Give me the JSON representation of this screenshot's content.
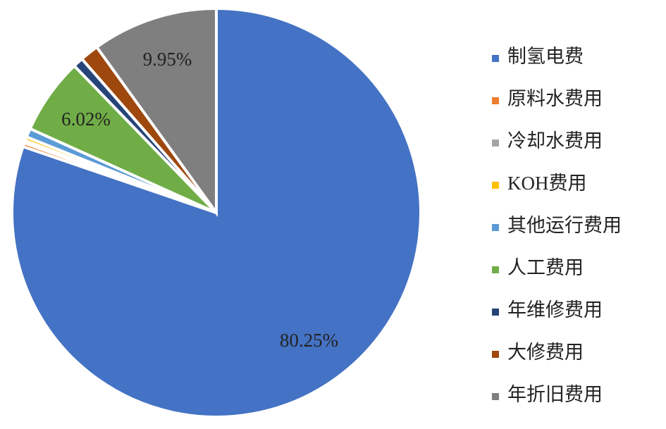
{
  "chart_data": {
    "type": "pie",
    "categories": [
      "制氢电费",
      "原料水费用",
      "冷却水费用",
      "KOH费用",
      "其他运行费用",
      "人工费用",
      "年维修费用",
      "大修费用",
      "年折旧费用"
    ],
    "values": [
      80.25,
      0.3,
      0.2,
      0.3,
      0.7,
      6.02,
      0.8,
      1.48,
      9.95
    ],
    "value_labels": [
      "80.25%",
      null,
      null,
      null,
      null,
      "6.02%",
      null,
      null,
      "9.95%"
    ],
    "colors": [
      "#4472c4",
      "#ed7d31",
      "#a5a5a5",
      "#ffc000",
      "#5b9bd5",
      "#70ad47",
      "#264478",
      "#9e480e",
      "#7f7f7f"
    ],
    "legend": "right"
  }
}
